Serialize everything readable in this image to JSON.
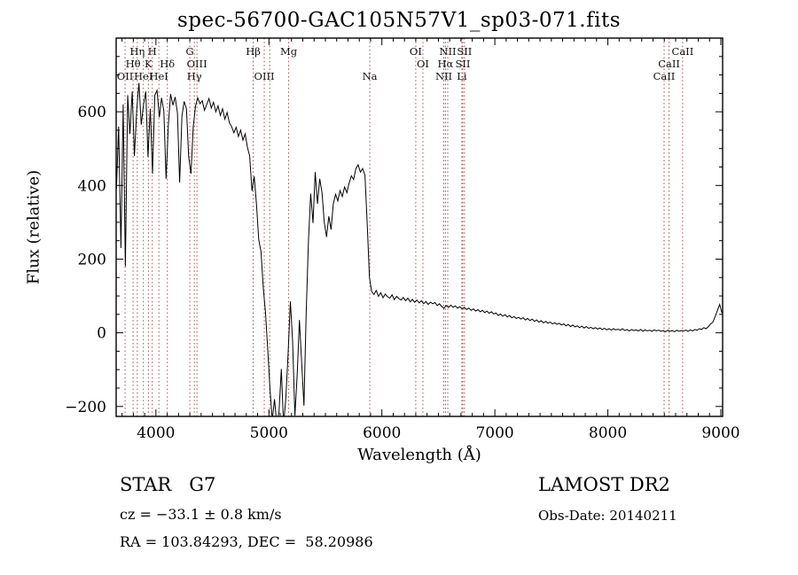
{
  "title": "spec-56700-GAC105N57V1_sp03-071.fits",
  "footer": {
    "class_label": "STAR   G7",
    "survey": "LAMOST DR2",
    "cz_line": "cz = −33.1 ± 0.8 km/s",
    "obs_date": "Obs-Date: 20140211",
    "radec_line": "RA = 103.84293, DEC =  58.20986"
  },
  "chart_data": {
    "type": "line",
    "title": "spec-56700-GAC105N57V1_sp03-071.fits",
    "xlabel": "Wavelength (Å)",
    "ylabel": "Flux (relative)",
    "xlim": [
      3648,
      9016
    ],
    "ylim": [
      -227,
      800
    ],
    "xticks": [
      4000,
      5000,
      6000,
      7000,
      8000,
      9000
    ],
    "yticks": [
      -200,
      0,
      200,
      400,
      600
    ],
    "grid": false,
    "legend": "none",
    "line_color": "#000000",
    "marker_color": "#9b3a3a",
    "line_markers": [
      {
        "wavelength": 3727,
        "label": "OII",
        "row": 3
      },
      {
        "wavelength": 3798,
        "label": "Hθ",
        "row": 2
      },
      {
        "wavelength": 3835,
        "label": "Hη",
        "row": 1
      },
      {
        "wavelength": 3889,
        "label": "HeI",
        "row": 3
      },
      {
        "wavelength": 3933,
        "label": "K",
        "row": 2
      },
      {
        "wavelength": 3968,
        "label": "H",
        "row": 1
      },
      {
        "wavelength": 4026,
        "label": "HeI",
        "row": 3
      },
      {
        "wavelength": 4101,
        "label": "Hδ",
        "row": 2
      },
      {
        "wavelength": 4300,
        "label": "G",
        "row": 1
      },
      {
        "wavelength": 4340,
        "label": "Hγ",
        "row": 3
      },
      {
        "wavelength": 4363,
        "label": "OIII",
        "row": 2
      },
      {
        "wavelength": 4861,
        "label": "Hβ",
        "row": 1
      },
      {
        "wavelength": 4959,
        "label": "OIII",
        "row": 3
      },
      {
        "wavelength": 5007,
        "label": "",
        "row": 3
      },
      {
        "wavelength": 5175,
        "label": "Mg",
        "row": 1
      },
      {
        "wavelength": 5893,
        "label": "Na",
        "row": 3
      },
      {
        "wavelength": 6300,
        "label": "OI",
        "row": 1
      },
      {
        "wavelength": 6363,
        "label": "OI",
        "row": 2
      },
      {
        "wavelength": 6548,
        "label": "NII",
        "row": 3
      },
      {
        "wavelength": 6563,
        "label": "Hα",
        "row": 2
      },
      {
        "wavelength": 6583,
        "label": "NII",
        "row": 1
      },
      {
        "wavelength": 6708,
        "label": "Li",
        "row": 3
      },
      {
        "wavelength": 6716,
        "label": "SII",
        "row": 2
      },
      {
        "wavelength": 6731,
        "label": "SII",
        "row": 1
      },
      {
        "wavelength": 8498,
        "label": "CaII",
        "row": 3
      },
      {
        "wavelength": 8542,
        "label": "CaII",
        "row": 2
      },
      {
        "wavelength": 8662,
        "label": "CaII",
        "row": 1
      }
    ],
    "series": {
      "name": "spectrum",
      "x_start": 3650,
      "x_step": 20,
      "flux": [
        390,
        560,
        230,
        620,
        180,
        645,
        540,
        655,
        480,
        605,
        678,
        565,
        618,
        655,
        478,
        608,
        432,
        645,
        658,
        585,
        638,
        602,
        418,
        565,
        648,
        618,
        640,
        598,
        408,
        588,
        628,
        608,
        478,
        432,
        558,
        615,
        638,
        622,
        630,
        604,
        620,
        636,
        610,
        626,
        600,
        616,
        590,
        608,
        580,
        598,
        570,
        560,
        543,
        558,
        533,
        550,
        523,
        540,
        503,
        480,
        385,
        425,
        348,
        253,
        220,
        123,
        53,
        -47,
        -152,
        -238,
        -180,
        -248,
        -214,
        -98,
        -250,
        -176,
        -58,
        85,
        -22,
        -225,
        -118,
        35,
        -80,
        -198,
        52,
        250,
        378,
        298,
        436,
        350,
        418,
        380,
        300,
        260,
        316,
        280,
        350,
        376,
        358,
        386,
        370,
        396,
        380,
        406,
        426,
        416,
        446,
        456,
        436,
        446,
        428,
        298,
        150,
        112,
        104,
        115,
        99,
        109,
        95,
        105,
        98,
        94,
        103,
        90,
        99,
        93,
        89,
        96,
        87,
        94,
        84,
        91,
        83,
        89,
        81,
        87,
        79,
        85,
        77,
        83,
        79,
        82,
        74,
        79,
        71,
        67,
        74,
        69,
        75,
        69,
        73,
        67,
        71,
        65,
        69,
        63,
        67,
        61,
        65,
        59,
        63,
        57,
        61,
        55,
        59,
        53,
        57,
        51,
        54,
        47,
        51,
        45,
        49,
        43,
        47,
        41,
        44,
        39,
        42,
        37,
        41,
        35,
        39,
        33,
        37,
        31,
        35,
        29,
        33,
        27,
        31,
        26,
        29,
        24,
        27,
        23,
        26,
        21,
        24,
        19,
        23,
        17,
        21,
        16,
        19,
        14,
        18,
        13,
        17,
        12,
        15,
        11,
        14,
        10,
        13,
        9,
        12,
        8,
        11,
        7,
        11,
        8,
        10,
        7,
        11,
        6,
        9,
        5,
        9,
        6,
        8,
        5,
        9,
        4,
        8,
        5,
        7,
        4,
        8,
        5,
        7,
        4,
        6,
        3,
        7,
        4,
        6,
        3,
        7,
        4,
        6,
        5,
        7,
        4,
        8,
        5,
        9,
        7,
        11,
        9,
        14,
        11,
        17,
        24,
        29,
        44,
        61,
        77,
        54
      ]
    }
  }
}
